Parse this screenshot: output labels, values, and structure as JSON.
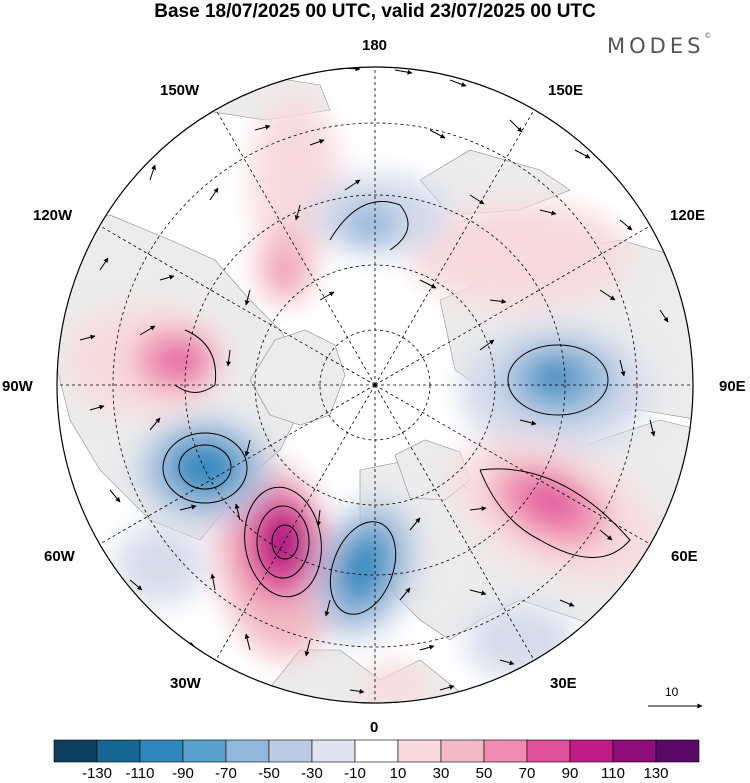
{
  "title": "Base 18/07/2025 00 UTC, valid 23/07/2025 00 UTC",
  "brand": {
    "name": "MODES",
    "mark": "©"
  },
  "longitude_labels": {
    "lon_180": "180",
    "lon_150w": "150W",
    "lon_150e": "150E",
    "lon_120w": "120W",
    "lon_120e": "120E",
    "lon_90w": "90W",
    "lon_90e": "90E",
    "lon_60w": "60W",
    "lon_60e": "60E",
    "lon_30w": "30W",
    "lon_30e": "30E",
    "lon_0": "0"
  },
  "reference_vector": {
    "label": "10"
  },
  "colorbar": {
    "labels": [
      "-130",
      "-110",
      "-90",
      "-70",
      "-50",
      "-30",
      "-10",
      "10",
      "30",
      "50",
      "70",
      "90",
      "110",
      "130"
    ],
    "colors": [
      "#0e3f5e",
      "#176593",
      "#2f86bd",
      "#5aa2cd",
      "#91b8da",
      "#bccbe3",
      "#e1e4f0",
      "#ffffff",
      "#f8dade",
      "#f3b9c4",
      "#ef8cb0",
      "#e04f9c",
      "#c01c85",
      "#8e0d78",
      "#5a0a66"
    ]
  },
  "anomalies": [
    {
      "id": "ne-atlantic-ridge",
      "value": 120
    },
    {
      "id": "hudson-low",
      "value": -110
    },
    {
      "id": "europe-trough",
      "value": -90
    },
    {
      "id": "west-siberia-low",
      "value": -80
    },
    {
      "id": "kazakhstan-ridge",
      "value": 90
    },
    {
      "id": "alaska-ridge",
      "value": 60
    },
    {
      "id": "canada-ridge",
      "value": 60
    },
    {
      "id": "bering-trough",
      "value": -60
    },
    {
      "id": "north-pacific-ridge",
      "value": 40
    },
    {
      "id": "east-siberia-ridge",
      "value": 50
    },
    {
      "id": "newfoundland-trough",
      "value": -40
    },
    {
      "id": "mediterranean-ridge",
      "value": 30
    }
  ]
}
